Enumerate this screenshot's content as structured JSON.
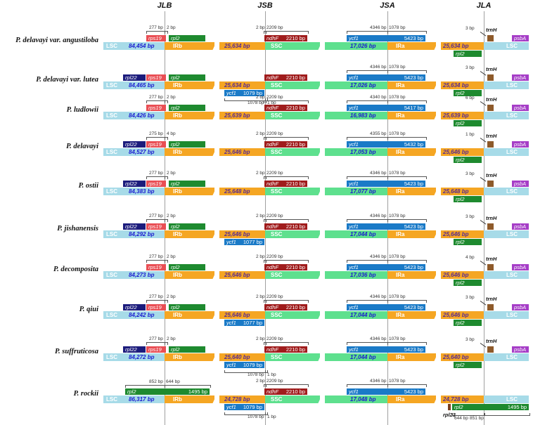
{
  "junctions": [
    "JLB",
    "JSB",
    "JSA",
    "JLA"
  ],
  "region_names": {
    "lsc": "LSC",
    "irb": "IRb",
    "ssc": "SSC",
    "ira": "IRa"
  },
  "gene_labels": {
    "rps19": "rps19",
    "rpl2": "rpl2",
    "rpl22": "rpl22",
    "ndhF": "ndhF",
    "ycf1": "ycf1",
    "psbA": "psbA",
    "trnH": "trnH",
    "rpl23": "rpl23"
  },
  "colors": {
    "lsc": "#a7dbe8",
    "ir": "#f5a623",
    "ssc": "#5ee08e",
    "rps19": "#e94e54",
    "rpl2": "#1e8a2f",
    "rpl22": "#1c1c7c",
    "ndhF": "#a01c1c",
    "ycf1": "#1a7ac7",
    "psbA": "#a63ec7",
    "trnH": "#8e5a2a"
  },
  "species": [
    {
      "name": "P. delavayi var. angustiloba",
      "lsc": "84,454 bp",
      "irb": "25,634 bp",
      "ssc": "17,026 bp",
      "ira": "25,634 bp",
      "has_rpl22": false,
      "rps19_dists": [
        "277 bp",
        "2 bp"
      ],
      "ndhF_dists": [
        "2 bp",
        "2209 bp"
      ],
      "ndhF_size": "2210 bp",
      "ycf1_dists": [
        "4346 bp",
        "1078 bp"
      ],
      "ycf1_size": "5423 bp",
      "trnH_dist": "3 bp",
      "ycf1_frag": null,
      "ycf1_frag_dists": null
    },
    {
      "name": "P. delavayi var. lutea",
      "lsc": "84,465 bp",
      "irb": "25,634 bp",
      "ssc": "17,026 bp",
      "ira": "25,634 bp",
      "has_rpl22": true,
      "rps19_dists": null,
      "ndhF_dists": null,
      "ndhF_size": "2210 bp",
      "ycf1_dists": [
        "4346 bp",
        "1078 bp"
      ],
      "ycf1_size": "5423 bp",
      "trnH_dist": "3 bp",
      "ycf1_frag": "1079 bp",
      "ycf1_frag_dists": [
        "1078 bp",
        "1 bp"
      ]
    },
    {
      "name": "P. ludlowii",
      "lsc": "84,426 bp",
      "irb": "25,639 bp",
      "ssc": "16,983 bp",
      "ira": "25,639 bp",
      "has_rpl22": false,
      "rps19_dists": [
        "277 bp",
        "2 bp"
      ],
      "ndhF_dists": [
        "2 bp",
        "2209 bp"
      ],
      "ndhF_size": "2210 bp",
      "ycf1_dists": [
        "4340 bp",
        "1078 bp"
      ],
      "ycf1_size": "5417 bp",
      "trnH_dist": "6 bp",
      "ycf1_frag": null,
      "ycf1_frag_dists": null
    },
    {
      "name": "P. delavayi",
      "lsc": "84,527 bp",
      "irb": "25,646 bp",
      "ssc": "17,053 bp",
      "ira": "25,646 bp",
      "has_rpl22": true,
      "rps19_dists": [
        "275 bp",
        "4 bp"
      ],
      "ndhF_dists": [
        "2 bp",
        "2209 bp"
      ],
      "ndhF_size": "2210 bp",
      "ycf1_dists": [
        "4355 bp",
        "1078 bp"
      ],
      "ycf1_size": "5432 bp",
      "trnH_dist": "1 bp",
      "ycf1_frag": null,
      "ycf1_frag_dists": null
    },
    {
      "name": "P. ostii",
      "lsc": "84,383 bp",
      "irb": "25,648 bp",
      "ssc": "17,077 bp",
      "ira": "25,648 bp",
      "has_rpl22": true,
      "rps19_dists": [
        "277 bp",
        "2 bp"
      ],
      "ndhF_dists": [
        "2 bp",
        "2209 bp"
      ],
      "ndhF_size": "2210 bp",
      "ycf1_dists": [
        "4346 bp",
        "1078 bp"
      ],
      "ycf1_size": "5423 bp",
      "trnH_dist": "3 bp",
      "ycf1_frag": null,
      "ycf1_frag_dists": null
    },
    {
      "name": "P. jishanensis",
      "lsc": "84,292 bp",
      "irb": "25,646 bp",
      "ssc": "17,044 bp",
      "ira": "25,646 bp",
      "has_rpl22": true,
      "rps19_dists": [
        "277 bp",
        "2 bp"
      ],
      "ndhF_dists": [
        "2 bp",
        "2209 bp"
      ],
      "ndhF_size": "2210 bp",
      "ycf1_dists": [
        "4346 bp",
        "1078 bp"
      ],
      "ycf1_size": "5423 bp",
      "trnH_dist": "3 bp",
      "ycf1_frag": "1077 bp",
      "ycf1_frag_dists": null
    },
    {
      "name": "P. decomposita",
      "lsc": "84,273 bp",
      "irb": "25,646 bp",
      "ssc": "17,036 bp",
      "ira": "25,646 bp",
      "has_rpl22": false,
      "rps19_dists": [
        "277 bp",
        "2 bp"
      ],
      "ndhF_dists": [
        "2 bp",
        "2209 bp"
      ],
      "ndhF_size": "2210 bp",
      "ycf1_dists": [
        "4346 bp",
        "1078 bp"
      ],
      "ycf1_size": "5423 bp",
      "trnH_dist": "4 bp",
      "ycf1_frag": null,
      "ycf1_frag_dists": null
    },
    {
      "name": "P. qiui",
      "lsc": "84,242 bp",
      "irb": "25,646 bp",
      "ssc": "17,044 bp",
      "ira": "25,646 bp",
      "has_rpl22": true,
      "rps19_dists": [
        "277 bp",
        "2 bp"
      ],
      "ndhF_dists": [
        "2 bp",
        "2209 bp"
      ],
      "ndhF_size": "2210 bp",
      "ycf1_dists": [
        "4346 bp",
        "1078 bp"
      ],
      "ycf1_size": "5423 bp",
      "trnH_dist": "3 bp",
      "ycf1_frag": "1077 bp",
      "ycf1_frag_dists": null
    },
    {
      "name": "P. suffruticosa",
      "lsc": "84,272 bp",
      "irb": "25,640 bp",
      "ssc": "17,044 bp",
      "ira": "25,640 bp",
      "has_rpl22": true,
      "rps19_dists": [
        "277 bp",
        "2 bp"
      ],
      "ndhF_dists": [
        "2 bp",
        "2209 bp"
      ],
      "ndhF_size": "2210 bp",
      "ycf1_dists": [
        "4346 bp",
        "1078 bp"
      ],
      "ycf1_size": "5423 bp",
      "trnH_dist": "3 bp",
      "ycf1_frag": "1079 bp",
      "ycf1_frag_dists": [
        "1078 bp",
        "1 bp"
      ]
    },
    {
      "name": "P. rockii",
      "lsc": "86,317 bp",
      "irb": "24,728 bp",
      "ssc": "17,048 bp",
      "ira": "24,728 bp",
      "has_rpl22": false,
      "rockii": true,
      "rpl2_dists": [
        "852 bp",
        "644 bp"
      ],
      "rpl2_size": "1495 bp",
      "ndhF_dists": [
        "2 bp",
        "2209 bp"
      ],
      "ndhF_size": "2210 bp",
      "ycf1_dists": [
        "4346 bp",
        "1078 bp"
      ],
      "ycf1_size": "5423 bp",
      "ycf1_frag": "1079 bp",
      "ycf1_frag_dists": [
        "1078 bp",
        "1 bp"
      ],
      "rpl2_ira_size": "1495 bp",
      "rpl2_ira_dists": [
        "644 bp",
        "851 bp"
      ]
    }
  ]
}
